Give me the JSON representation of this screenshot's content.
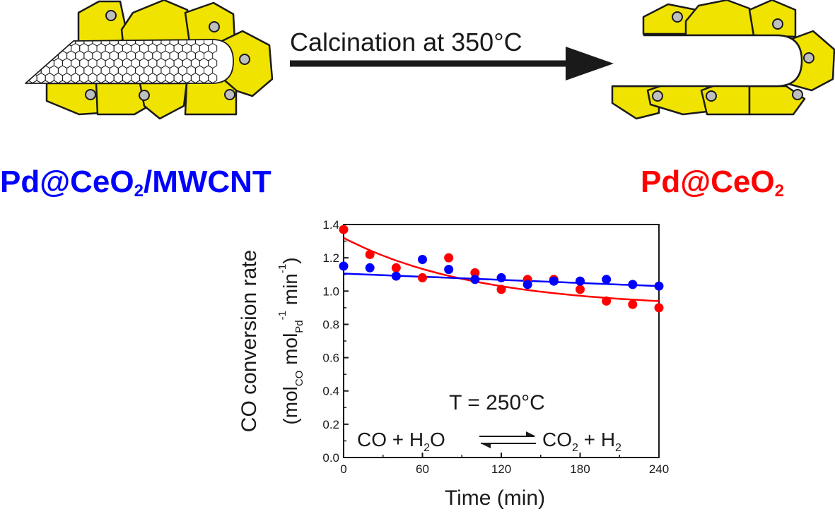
{
  "arrow_label": "Calcination at 350°C",
  "left_label": {
    "text": "Pd@CeO",
    "sub": "2",
    "tail": "/MWCNT",
    "color": "#0000ff"
  },
  "right_label": {
    "text": "Pd@CeO",
    "sub": "2",
    "color": "#ff0000"
  },
  "colors": {
    "ceria": "#f0e300",
    "pd": "#bfbfbf",
    "series_a": "#ff0000",
    "series_b": "#0000ff"
  },
  "icons": [
    "mwcnt-honeycomb-icon",
    "ceria-crystal-icon",
    "pd-particle-icon",
    "reaction-arrows-icon"
  ],
  "chart_data": {
    "type": "scatter",
    "xlabel": "Time (min)",
    "ylabel": {
      "line1": "CO conversion rate",
      "line2_parts": [
        "(mol",
        "CO",
        " mol",
        "Pd",
        "-1",
        " min",
        "-1",
        ")"
      ]
    },
    "xlim": [
      0,
      240
    ],
    "ylim": [
      0.0,
      1.4
    ],
    "xticks": [
      0,
      60,
      120,
      180,
      240
    ],
    "yticks": [
      "0.0",
      "0.2",
      "0.4",
      "0.6",
      "0.8",
      "1.0",
      "1.2",
      "1.4"
    ],
    "annotation": "T = 250°C",
    "reaction": {
      "left": "CO + H",
      "left_sub": "2",
      "left_tail": "O",
      "right": "CO",
      "right_sub": "2",
      "right_mid": " + H",
      "right_sub2": "2"
    },
    "series": [
      {
        "label": "Pd@CeO2",
        "color": "#ff0000",
        "x": [
          0,
          20,
          40,
          60,
          80,
          100,
          120,
          140,
          160,
          180,
          200,
          220,
          240
        ],
        "y": [
          1.37,
          1.22,
          1.14,
          1.08,
          1.2,
          1.11,
          1.01,
          1.07,
          1.07,
          1.01,
          0.94,
          0.92,
          0.9
        ],
        "fit": {
          "form": "exponential",
          "a": 0.42,
          "b": 0.9,
          "tau": 102
        }
      },
      {
        "label": "Pd@CeO2/MWCNT",
        "color": "#0000ff",
        "x": [
          0,
          20,
          40,
          60,
          80,
          100,
          120,
          140,
          160,
          180,
          200,
          220,
          240
        ],
        "y": [
          1.15,
          1.14,
          1.09,
          1.19,
          1.13,
          1.07,
          1.08,
          1.04,
          1.06,
          1.06,
          1.07,
          1.04,
          1.03
        ],
        "fit": {
          "form": "linear",
          "y0": 1.105,
          "y1": 1.03
        }
      }
    ]
  }
}
